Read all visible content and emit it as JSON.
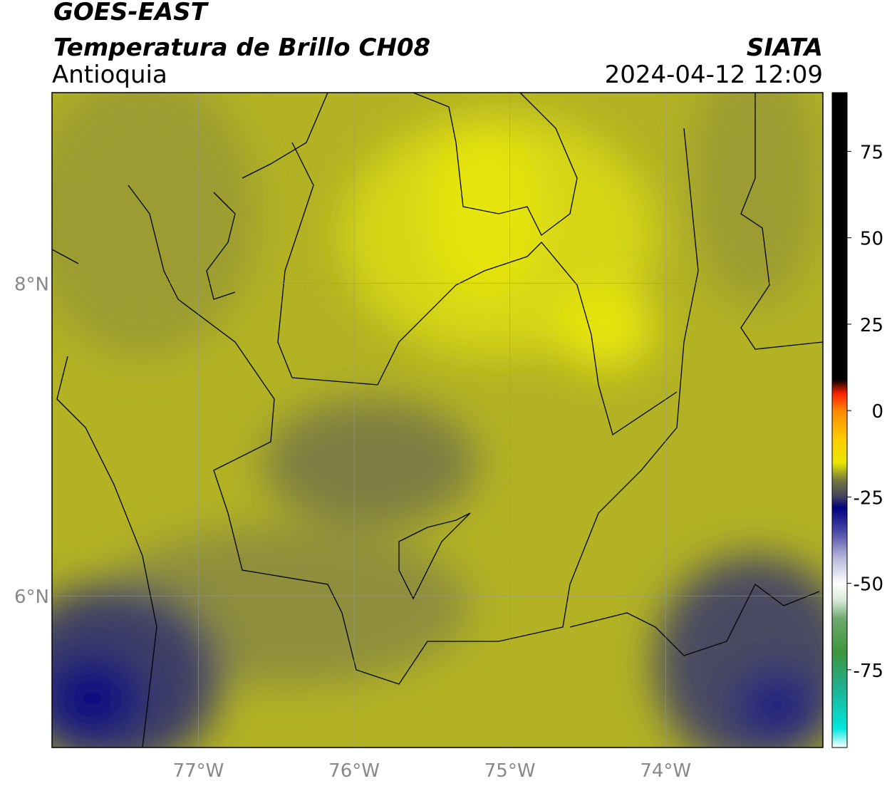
{
  "header": {
    "title": "GOES-EAST",
    "subtitle": "Temperatura de Brillo CH08",
    "region": "Antioquia",
    "source": "SIATA",
    "datetime": "2024-04-12 12:09"
  },
  "map": {
    "xlim": [
      -77.94,
      -72.99
    ],
    "ylim": [
      5.03,
      9.22
    ],
    "xticks": [
      {
        "value": -77,
        "label": "77°W"
      },
      {
        "value": -76,
        "label": "76°W"
      },
      {
        "value": -75,
        "label": "75°W"
      },
      {
        "value": -74,
        "label": "74°W"
      }
    ],
    "yticks": [
      {
        "value": 6,
        "label": "6°N"
      },
      {
        "value": 8,
        "label": "8°N"
      }
    ],
    "grid": true
  },
  "colorbar": {
    "lim": [
      -97.5,
      92
    ],
    "ticks": [
      -75,
      -50,
      -25,
      0,
      25,
      50,
      75
    ],
    "stops": [
      {
        "value": -97.5,
        "color": "#ffffff"
      },
      {
        "value": -92,
        "color": "#00e8dc"
      },
      {
        "value": -80,
        "color": "#20b090"
      },
      {
        "value": -70,
        "color": "#3c963c"
      },
      {
        "value": -60,
        "color": "#70aa70"
      },
      {
        "value": -55,
        "color": "#d8e8d8"
      },
      {
        "value": -50,
        "color": "#ffffff"
      },
      {
        "value": -42,
        "color": "#b0b0d8"
      },
      {
        "value": -35,
        "color": "#4a4aa8"
      },
      {
        "value": -28,
        "color": "#000080"
      },
      {
        "value": -25,
        "color": "#404060"
      },
      {
        "value": -20,
        "color": "#787840"
      },
      {
        "value": -15,
        "color": "#e8e800"
      },
      {
        "value": -8,
        "color": "#ffcc00"
      },
      {
        "value": 0,
        "color": "#ff8800"
      },
      {
        "value": 5,
        "color": "#ff2000"
      },
      {
        "value": 9,
        "color": "#000000"
      },
      {
        "value": 92,
        "color": "#000000"
      }
    ]
  }
}
